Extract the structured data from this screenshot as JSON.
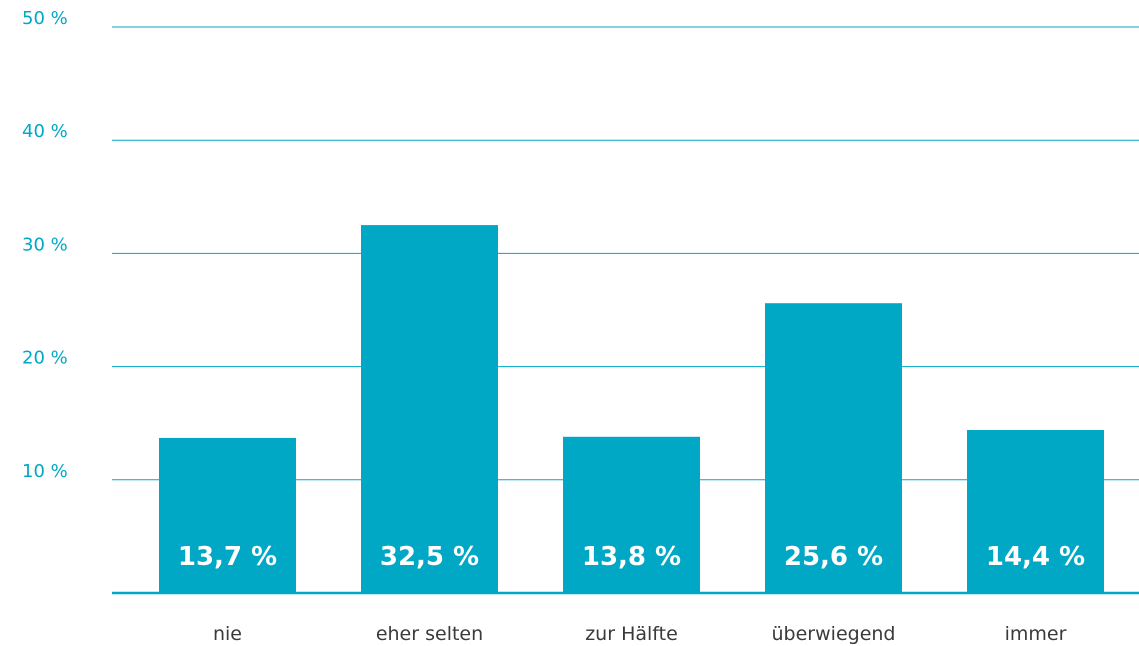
{
  "chart_data": {
    "type": "bar",
    "title": "",
    "xlabel": "",
    "ylabel": "",
    "ylim": [
      0,
      50
    ],
    "yticks": [
      10,
      20,
      30,
      40,
      50
    ],
    "ytick_labels": [
      "10 %",
      "20 %",
      "30 %",
      "40 %",
      "50 %"
    ],
    "grid": true,
    "categories": [
      "nie",
      "eher selten",
      "zur Hälfte",
      "überwiegend",
      "immer"
    ],
    "values": [
      13.7,
      32.5,
      13.8,
      25.6,
      14.4
    ],
    "data_labels": [
      "13,7 %",
      "32,5 %",
      "13,8 %",
      "25,6 %",
      "14,4 %"
    ],
    "colors": {
      "bar": "#00a8c6",
      "grid": "#00a8c6",
      "tick_text": "#00a8c6",
      "category_text": "#3a3a3a",
      "data_label_text": "#ffffff"
    }
  }
}
